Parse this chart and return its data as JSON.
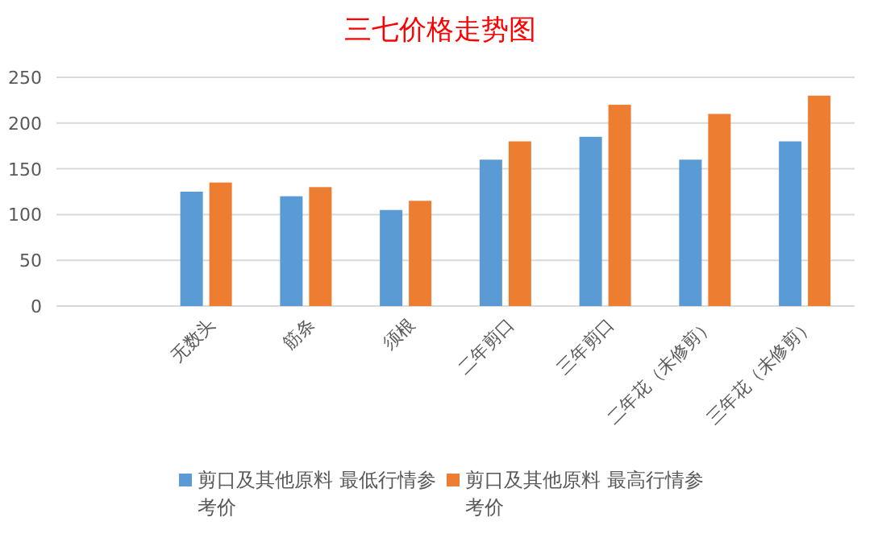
{
  "chart_data": {
    "type": "bar",
    "title": "三七价格走势图",
    "categories": [
      null,
      "无数头",
      "筋条",
      "须根",
      "二年剪口",
      "三年剪口",
      "二年花（未修剪）",
      "三年花（未修剪）"
    ],
    "series": [
      {
        "name": "剪口及其他原料 最低行情参考价",
        "color": "#5b9bd5",
        "values": [
          null,
          125,
          120,
          105,
          160,
          185,
          160,
          180
        ]
      },
      {
        "name": "剪口及其他原料 最高行情参考价",
        "color": "#ed7d31",
        "values": [
          null,
          135,
          130,
          115,
          180,
          220,
          210,
          230
        ]
      }
    ],
    "ylim": [
      0,
      250
    ],
    "yticks": [
      0,
      50,
      100,
      150,
      200,
      250
    ],
    "grid": "y",
    "legend": "bottom"
  }
}
